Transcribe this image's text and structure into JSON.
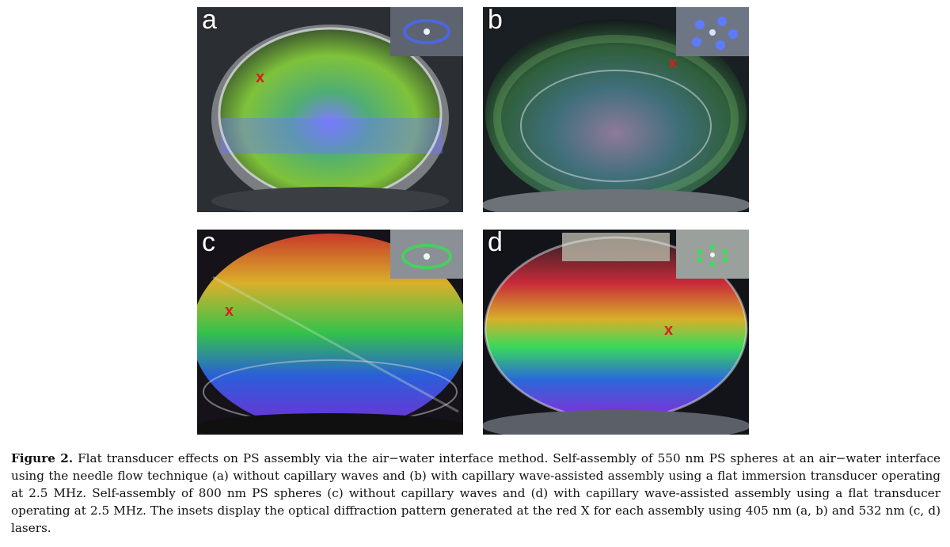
{
  "panels": [
    {
      "label": "a",
      "laser_color": "#3a55ff"
    },
    {
      "label": "b",
      "laser_color": "#3a55ff"
    },
    {
      "label": "c",
      "laser_color": "#29e84a"
    },
    {
      "label": "d",
      "laser_color": "#29e84a"
    }
  ],
  "marker": "x",
  "caption": {
    "label": "Figure 2.",
    "text": " Flat transducer effects on PS assembly via the air−water interface method. Self-assembly of 550 nm PS spheres at an air−water interface using the needle flow technique (a) without capillary waves and (b) with capillary wave-assisted assembly using a flat immersion transducer operating at 2.5 MHz. Self-assembly of 800 nm PS spheres (c) without capillary waves and (d) with capillary wave-assisted assembly using a flat transducer operating at 2.5 MHz. The insets display the optical diffraction pattern generated at the red X for each assembly using 405 nm (a, b) and 532 nm (c, d) lasers."
  }
}
